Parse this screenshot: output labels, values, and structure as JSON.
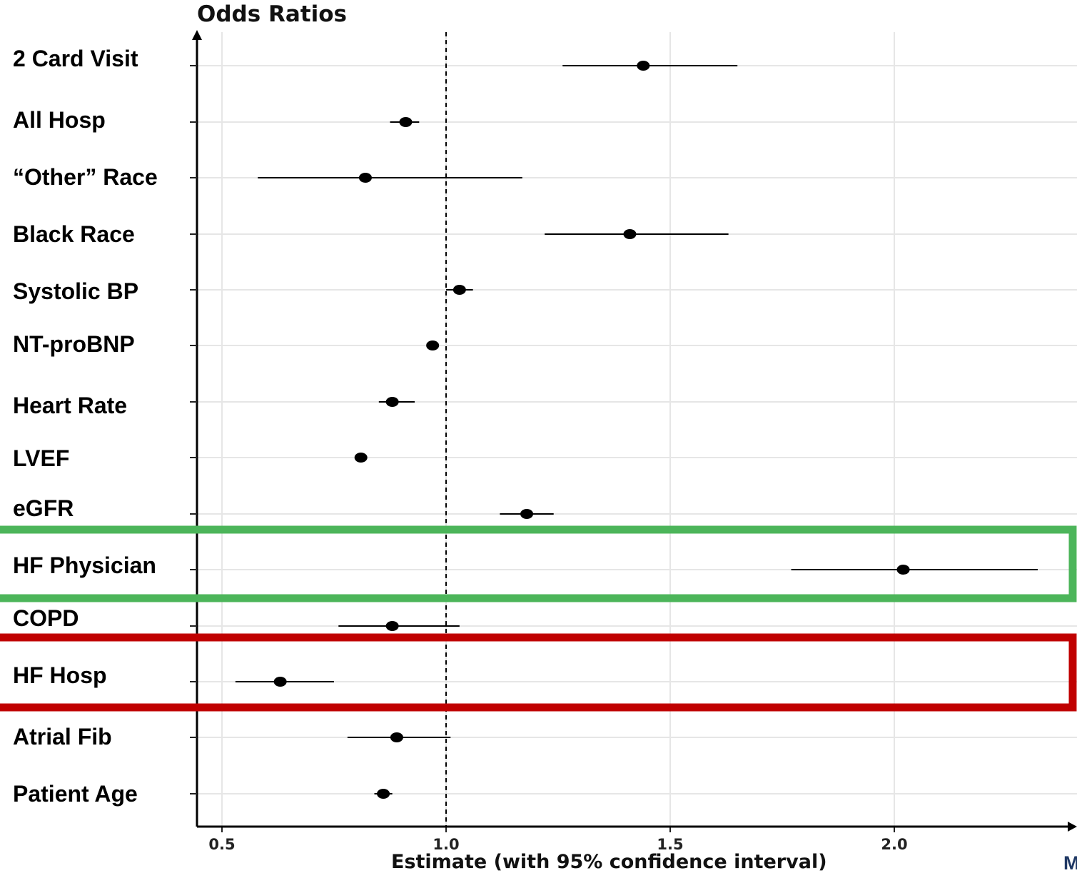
{
  "chart_data": {
    "type": "scatter",
    "subtype": "forest-plot",
    "title": "Odds Ratios",
    "xlabel": "Estimate (with 95% confidence interval)",
    "ylabel": "",
    "xlim": [
      0.44,
      2.4
    ],
    "xticks": [
      0.5,
      1.0,
      1.5,
      2.0
    ],
    "xtick_labels": [
      "0.5",
      "1.0",
      "1.5",
      "2.0"
    ],
    "reference_line": 1.0,
    "grid": true,
    "rows": [
      {
        "label": "2 Card Visit",
        "estimate": 1.44,
        "lower": 1.26,
        "upper": 1.65
      },
      {
        "label": "All Hosp",
        "estimate": 0.91,
        "lower": 0.875,
        "upper": 0.94
      },
      {
        "label": "“Other” Race",
        "estimate": 0.82,
        "lower": 0.58,
        "upper": 1.17
      },
      {
        "label": "Black Race",
        "estimate": 1.41,
        "lower": 1.22,
        "upper": 1.63
      },
      {
        "label": "Systolic BP",
        "estimate": 1.03,
        "lower": 1.0,
        "upper": 1.06
      },
      {
        "label": "NT-proBNP",
        "estimate": 0.97,
        "lower": 0.96,
        "upper": 0.98
      },
      {
        "label": "Heart Rate",
        "estimate": 0.88,
        "lower": 0.85,
        "upper": 0.93
      },
      {
        "label": "LVEF",
        "estimate": 0.81,
        "lower": 0.8,
        "upper": 0.82
      },
      {
        "label": "eGFR",
        "estimate": 1.18,
        "lower": 1.12,
        "upper": 1.24
      },
      {
        "label": "HF Physician",
        "estimate": 2.02,
        "lower": 1.77,
        "upper": 2.32,
        "highlight": "#4cb55a"
      },
      {
        "label": "COPD",
        "estimate": 0.88,
        "lower": 0.76,
        "upper": 1.03
      },
      {
        "label": "HF Hosp",
        "estimate": 0.63,
        "lower": 0.53,
        "upper": 0.75,
        "highlight": "#c00000"
      },
      {
        "label": "Atrial Fib",
        "estimate": 0.89,
        "lower": 0.78,
        "upper": 1.01
      },
      {
        "label": "Patient Age",
        "estimate": 0.86,
        "lower": 0.84,
        "upper": 0.88
      }
    ],
    "colors": {
      "point": "#000000",
      "grid": "#e6e6e6",
      "highlight_good": "#4cb55a",
      "highlight_bad": "#c00000"
    }
  },
  "corner_text": "M"
}
